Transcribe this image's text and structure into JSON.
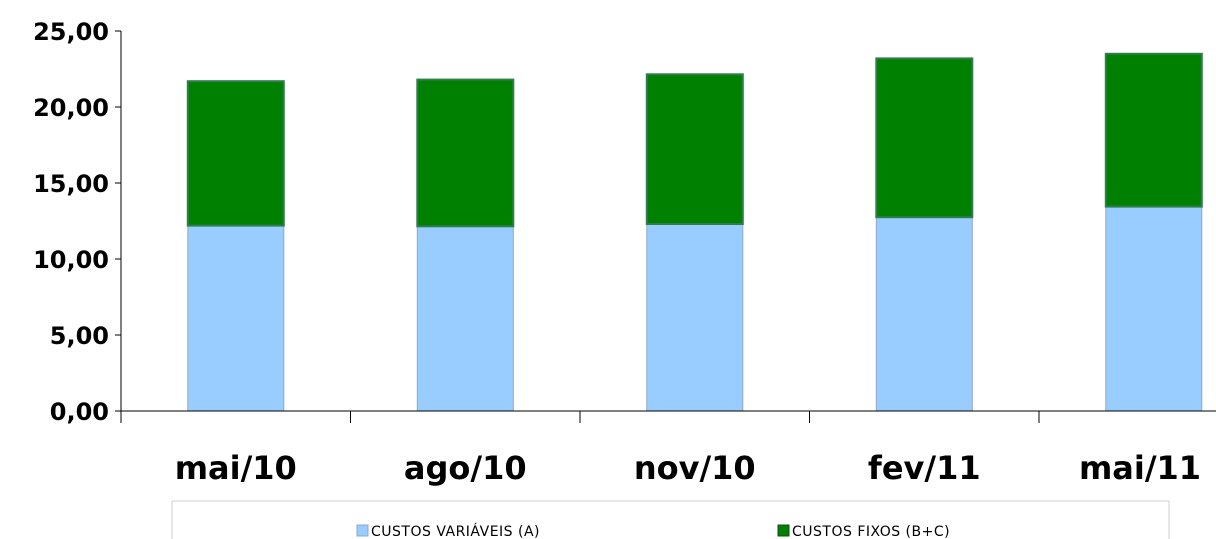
{
  "chart_data": {
    "type": "bar",
    "stacked": true,
    "categories": [
      "mai/10",
      "ago/10",
      "nov/10",
      "fev/11",
      "mai/11"
    ],
    "series": [
      {
        "name": "CUSTOS VARIÁVEIS (A)",
        "color": "#99ccff",
        "values": [
          12.2,
          12.15,
          12.3,
          12.75,
          13.45
        ]
      },
      {
        "name": "CUSTOS FIXOS (B+C)",
        "color": "#008000",
        "values": [
          9.5,
          9.65,
          9.85,
          10.45,
          10.05
        ]
      }
    ],
    "ylim": [
      0,
      25
    ],
    "yticks": [
      0,
      5,
      10,
      15,
      20,
      25
    ],
    "ytick_labels": [
      "0,00",
      "5,00",
      "10,00",
      "15,00",
      "20,00",
      "25,00"
    ],
    "grid": false,
    "legend_position": "bottom",
    "title": "",
    "xlabel": "",
    "ylabel": ""
  }
}
